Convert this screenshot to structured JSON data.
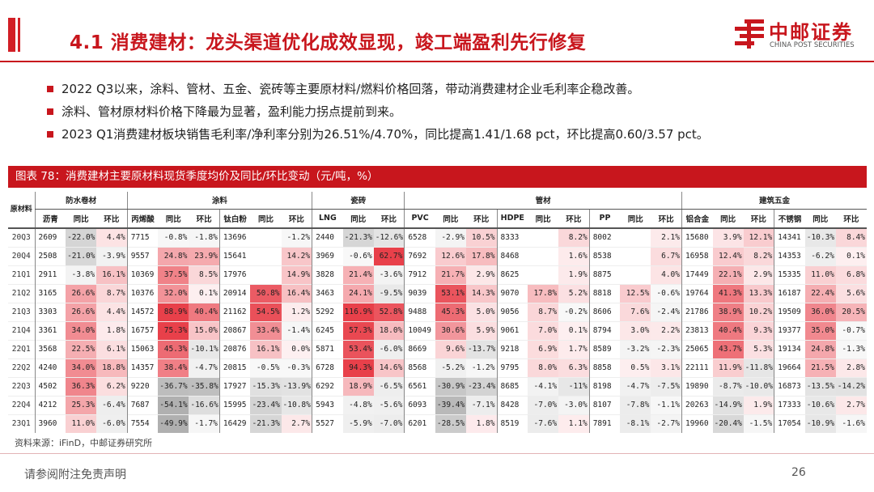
{
  "header": {
    "title": "4.1 消费建材：龙头渠道优化成效显现，竣工端盈利先行修复",
    "logo_cn": "中邮证券",
    "logo_en": "CHINA POST SECURITIES"
  },
  "bullets": [
    "2022 Q3以来，涂料、管材、五金、瓷砖等主要原材料/燃料价格回落，带动消费建材企业毛利率企稳改善。",
    "涂料、管材原材料价格下降最为显著，盈利能力拐点提前到来。",
    "2023 Q1消费建材板块销售毛利率/净利率分别为26.51%/4.70%，同比提高1.41/1.68 pct，环比提高0.60/3.57 pct。"
  ],
  "table": {
    "title": "图表 78：消费建材主要原材料现货季度均价及同比/环比变动（元/吨，%）",
    "corner_label": "原材料",
    "groups": [
      {
        "label": "防水卷材",
        "span": 3
      },
      {
        "label": "涂料",
        "span": 6
      },
      {
        "label": "瓷砖",
        "span": 3
      },
      {
        "label": "管材",
        "span": 9
      },
      {
        "label": "建筑五金",
        "span": 6
      }
    ],
    "columns": [
      "沥青",
      "同比",
      "环比",
      "丙烯酸",
      "同比",
      "环比",
      "钛白粉",
      "同比",
      "环比",
      "LNG",
      "同比",
      "环比",
      "PVC",
      "同比",
      "环比",
      "HDPE",
      "同比",
      "环比",
      "PP",
      "同比",
      "环比",
      "铝合金",
      "同比",
      "环比",
      "不锈钢",
      "同比",
      "环比"
    ],
    "quarters": [
      "20Q3",
      "20Q4",
      "21Q1",
      "21Q2",
      "21Q3",
      "21Q4",
      "22Q1",
      "22Q2",
      "22Q3",
      "22Q4",
      "23Q1"
    ],
    "rows": [
      [
        "2609",
        "-22.0%",
        "4.4%",
        "7715",
        "-0.8%",
        "-1.8%",
        "13696",
        "",
        "-1.2%",
        "2440",
        "-21.3%",
        "-12.6%",
        "6528",
        "-2.9%",
        "10.5%",
        "8333",
        "",
        "8.2%",
        "8002",
        "",
        "2.1%",
        "15680",
        "3.9%",
        "12.1%",
        "14341",
        "-10.3%",
        "8.4%"
      ],
      [
        "2508",
        "-21.0%",
        "-3.9%",
        "9557",
        "24.8%",
        "23.9%",
        "15641",
        "",
        "14.2%",
        "3969",
        "-0.6%",
        "62.7%",
        "7692",
        "12.6%",
        "17.8%",
        "8468",
        "",
        "1.6%",
        "8538",
        "",
        "6.7%",
        "16958",
        "12.4%",
        "8.2%",
        "14353",
        "-6.2%",
        "0.1%"
      ],
      [
        "2911",
        "-3.8%",
        "16.1%",
        "10369",
        "37.5%",
        "8.5%",
        "17976",
        "",
        "14.9%",
        "3828",
        "21.4%",
        "-3.6%",
        "7912",
        "21.7%",
        "2.9%",
        "8625",
        "",
        "1.9%",
        "8875",
        "",
        "4.0%",
        "17449",
        "22.1%",
        "2.9%",
        "15335",
        "11.0%",
        "6.8%"
      ],
      [
        "3165",
        "26.6%",
        "8.7%",
        "10376",
        "32.0%",
        "0.1%",
        "20914",
        "50.8%",
        "16.4%",
        "3463",
        "24.1%",
        "-9.5%",
        "9039",
        "53.1%",
        "14.3%",
        "9070",
        "17.8%",
        "5.2%",
        "8818",
        "12.5%",
        "-0.6%",
        "19764",
        "41.3%",
        "13.3%",
        "16187",
        "22.4%",
        "5.6%"
      ],
      [
        "3303",
        "26.6%",
        "4.4%",
        "14572",
        "88.9%",
        "40.4%",
        "21162",
        "54.5%",
        "1.2%",
        "5292",
        "116.9%",
        "52.8%",
        "9488",
        "45.3%",
        "5.0%",
        "9056",
        "8.7%",
        "-0.2%",
        "8606",
        "7.6%",
        "-2.4%",
        "21786",
        "38.9%",
        "10.2%",
        "19509",
        "36.0%",
        "20.5%"
      ],
      [
        "3361",
        "34.0%",
        "1.8%",
        "16757",
        "75.3%",
        "15.0%",
        "20867",
        "33.4%",
        "-1.4%",
        "6245",
        "57.3%",
        "18.0%",
        "10049",
        "30.6%",
        "5.9%",
        "9061",
        "7.0%",
        "0.1%",
        "8794",
        "3.0%",
        "2.2%",
        "23813",
        "40.4%",
        "9.3%",
        "19377",
        "35.0%",
        "-0.7%"
      ],
      [
        "3568",
        "22.5%",
        "6.1%",
        "15063",
        "45.3%",
        "-10.1%",
        "20876",
        "16.1%",
        "0.0%",
        "5871",
        "53.4%",
        "-6.0%",
        "8669",
        "9.6%",
        "-13.7%",
        "9218",
        "6.9%",
        "1.7%",
        "8589",
        "-3.2%",
        "-2.3%",
        "25065",
        "43.7%",
        "5.3%",
        "19134",
        "24.8%",
        "-1.3%"
      ],
      [
        "4240",
        "34.0%",
        "18.8%",
        "14357",
        "38.4%",
        "-4.7%",
        "20815",
        "-0.5%",
        "-0.3%",
        "6728",
        "94.3%",
        "14.6%",
        "8568",
        "-5.2%",
        "-1.2%",
        "9795",
        "8.0%",
        "6.3%",
        "8858",
        "0.5%",
        "3.1%",
        "22111",
        "11.9%",
        "-11.8%",
        "19664",
        "21.5%",
        "2.8%"
      ],
      [
        "4502",
        "36.3%",
        "6.2%",
        "9220",
        "-36.7%",
        "-35.8%",
        "17927",
        "-15.3%",
        "-13.9%",
        "6292",
        "18.9%",
        "-6.5%",
        "6561",
        "-30.9%",
        "-23.4%",
        "8685",
        "-4.1%",
        "-11%",
        "8198",
        "-4.7%",
        "-7.5%",
        "19890",
        "-8.7%",
        "-10.0%",
        "16873",
        "-13.5%",
        "-14.2%"
      ],
      [
        "4212",
        "25.3%",
        "-6.4%",
        "7687",
        "-54.1%",
        "-16.6%",
        "15995",
        "-23.4%",
        "-10.8%",
        "5943",
        "-4.8%",
        "-5.6%",
        "6093",
        "-39.4%",
        "-7.1%",
        "8428",
        "-7.0%",
        "-3.0%",
        "8107",
        "-7.8%",
        "-1.1%",
        "20263",
        "-14.9%",
        "1.9%",
        "17333",
        "-10.6%",
        "2.7%"
      ],
      [
        "3960",
        "11.0%",
        "-6.0%",
        "7554",
        "-49.9%",
        "-1.7%",
        "16429",
        "-21.3%",
        "2.7%",
        "5527",
        "-5.9%",
        "-7.0%",
        "6201",
        "-28.5%",
        "1.8%",
        "8519",
        "-7.6%",
        "1.1%",
        "7891",
        "-8.1%",
        "-2.7%",
        "19960",
        "-20.4%",
        "-1.5%",
        "17054",
        "-10.9%",
        "-1.6%"
      ]
    ],
    "colors": {
      "pos_max": "#e8404a",
      "neg_max": "#b0b0b0"
    }
  },
  "source": "资料来源：iFinD，中邮证券研究所",
  "footer": {
    "disclaimer": "请参阅附注免责声明",
    "page": "26"
  }
}
